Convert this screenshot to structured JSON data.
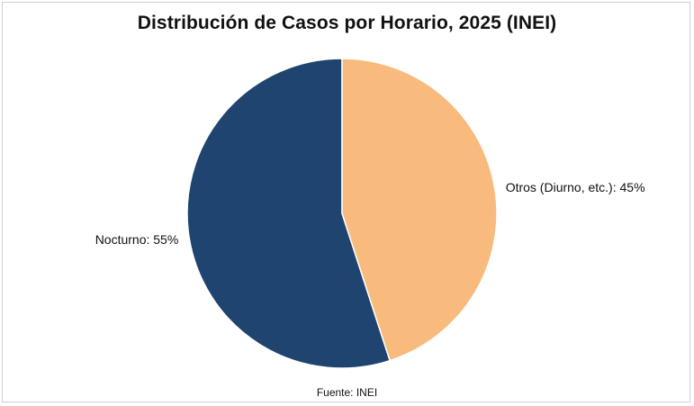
{
  "chart_data": {
    "type": "pie",
    "title": "Distribución de Casos por Horario, 2025 (INEI)",
    "source": "Fuente: INEI",
    "slices": [
      {
        "name": "Nocturno",
        "value": 55,
        "label": "Nocturno: 55%",
        "color": "#1f4470"
      },
      {
        "name": "Otros (Diurno, etc.)",
        "value": 45,
        "label": "Otros (Diurno, etc.): 45%",
        "color": "#f8bb7d"
      }
    ],
    "start_angle": "12 o'clock",
    "direction": "counterclockwise",
    "legend": "none"
  }
}
